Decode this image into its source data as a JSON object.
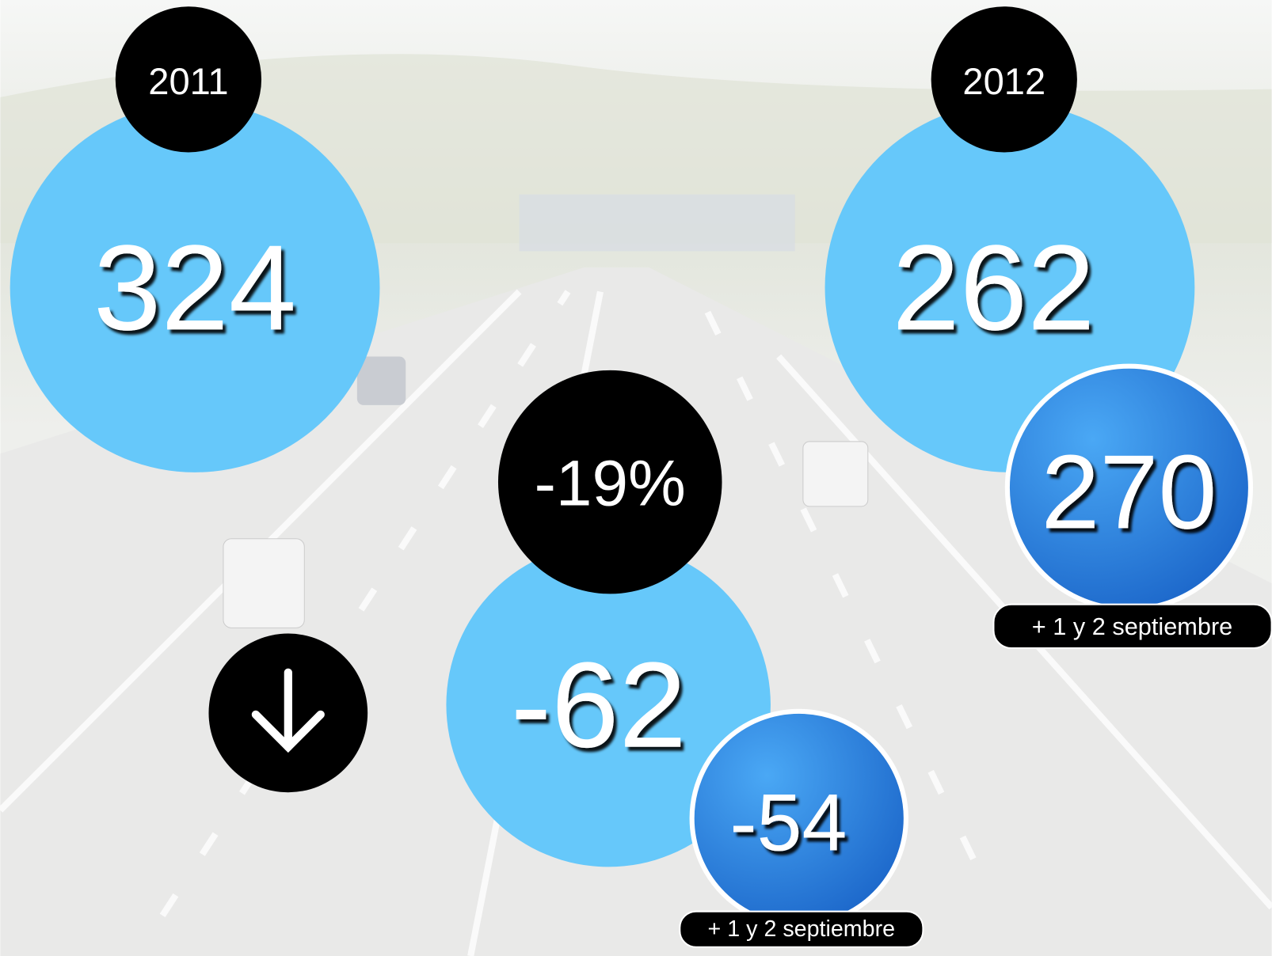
{
  "left": {
    "year": "2011",
    "value": "324"
  },
  "right": {
    "year": "2012",
    "value": "262",
    "extra": {
      "value": "270",
      "note": "+ 1 y 2 septiembre"
    }
  },
  "change": {
    "percent": "-19%",
    "value": "-62",
    "extra": {
      "value": "-54",
      "note": "+ 1 y 2 septiembre"
    }
  }
}
